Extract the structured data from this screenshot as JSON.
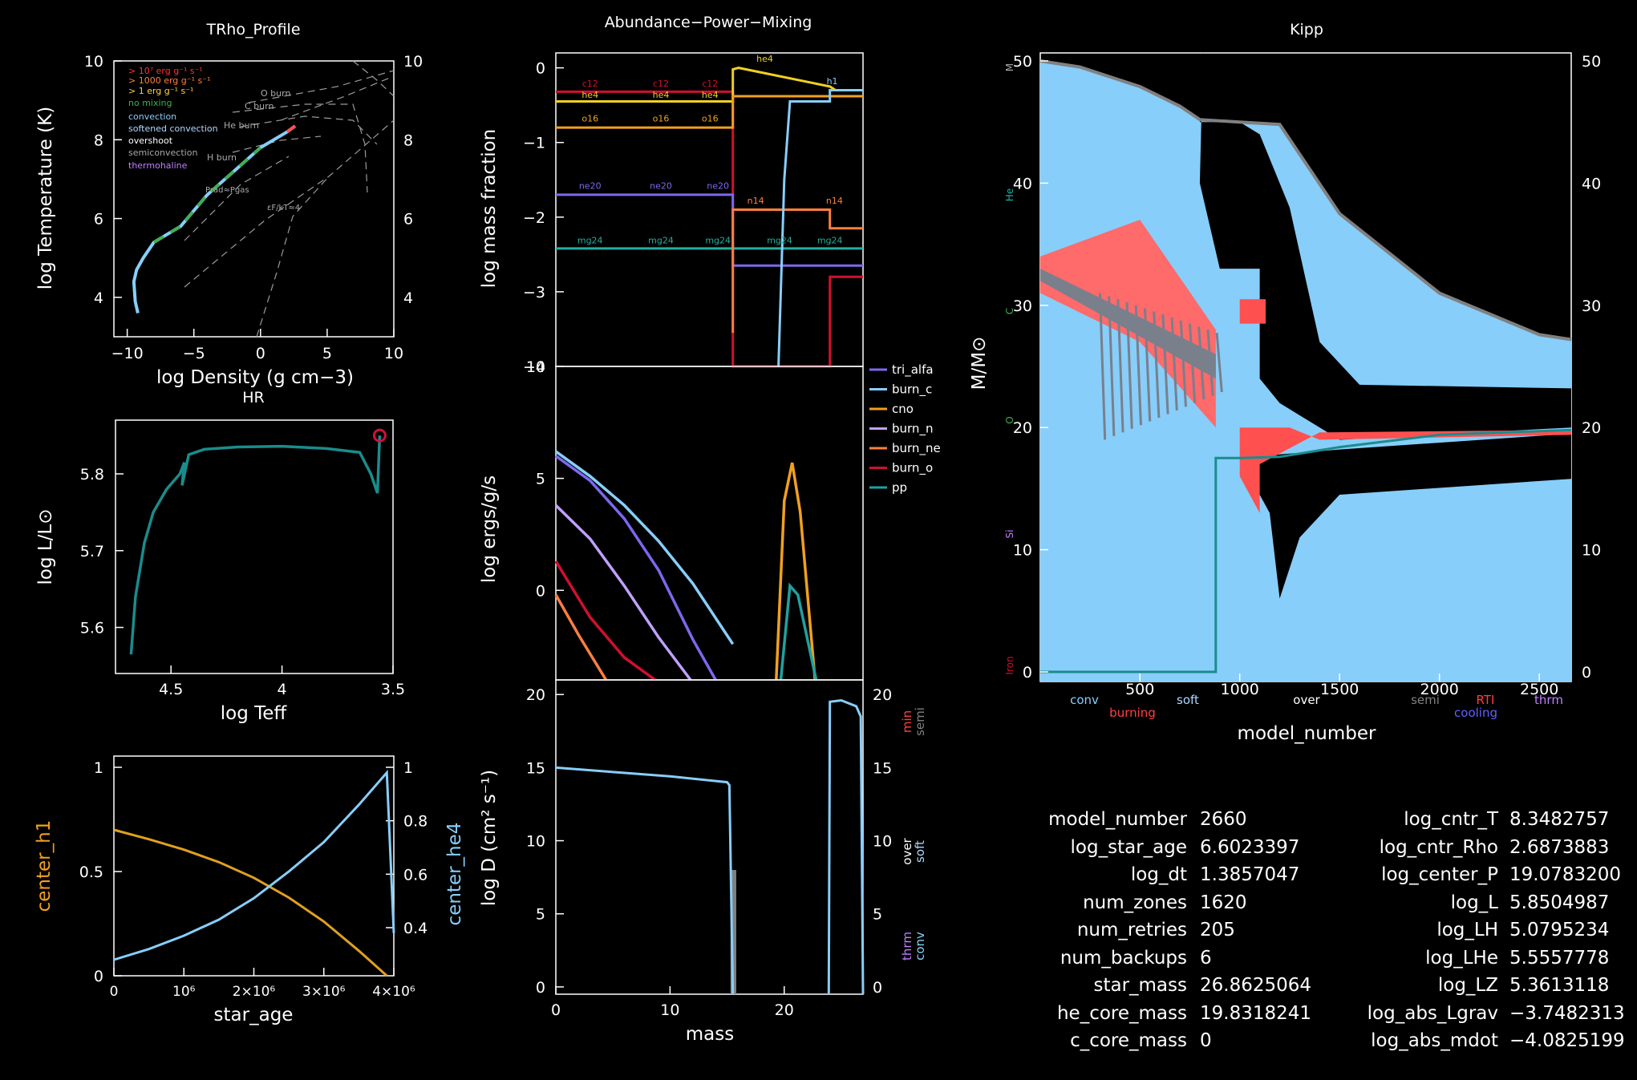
{
  "panel_titles": {
    "trho": "TRho_Profile",
    "abund": "Abundance−Power−Mixing",
    "kipp": "Kipp",
    "hr": "HR"
  },
  "trho": {
    "xlabel": "log Density (g cm−3)",
    "ylabel": "log Temperature (K)",
    "xticks": [
      "−10",
      "−5",
      "0",
      "5",
      "10"
    ],
    "yticks": [
      "4",
      "6",
      "8",
      "10"
    ],
    "legend": [
      {
        "label": "> 10⁷ erg g⁻¹ s⁻¹",
        "color": "#ff3030"
      },
      {
        "label": "> 1000 erg g⁻¹ s⁻¹",
        "color": "#ff7f3f"
      },
      {
        "label": "> 1 erg g⁻¹ s⁻¹",
        "color": "#ffd23f"
      },
      {
        "label": "no mixing",
        "color": "#3cb04a"
      },
      {
        "label": "convection",
        "color": "#87cefa"
      },
      {
        "label": "softened convection",
        "color": "#b0d8ff"
      },
      {
        "label": "overshoot",
        "color": "#ffffff"
      },
      {
        "label": "semiconvection",
        "color": "#a9a9a9"
      },
      {
        "label": "thermohaline",
        "color": "#c080ff"
      }
    ],
    "burn_labels": [
      "O burn",
      "C burn",
      "He burn",
      "H burn"
    ],
    "annotations": [
      "Prad≈Pgas",
      "εF/kT≈4"
    ]
  },
  "hr": {
    "xlabel": "log Teff",
    "ylabel": "log L/L⊙",
    "xticks": [
      "4.5",
      "4",
      "3.5"
    ],
    "yticks": [
      "5.6",
      "5.7",
      "5.8"
    ]
  },
  "center": {
    "xlabel": "star_age",
    "ylabel_left": "center_h1",
    "ylabel_right": "center_he4",
    "xticks": [
      "0",
      "10⁶",
      "2×10⁶",
      "3×10⁶",
      "4×10⁶"
    ],
    "yticks_left": [
      "0",
      "0.5",
      "1"
    ],
    "yticks_right": [
      "0.4",
      "0.6",
      "0.8",
      "1"
    ]
  },
  "abund": {
    "ylabel": "log mass fraction",
    "yticks": [
      "−4",
      "−3",
      "−2",
      "−1",
      "0"
    ],
    "line_labels": [
      {
        "label": "c12",
        "color": "#d01030"
      },
      {
        "label": "he4",
        "color": "#f0d020"
      },
      {
        "label": "o16",
        "color": "#f0a020"
      },
      {
        "label": "ne20",
        "color": "#7b68ee"
      },
      {
        "label": "mg24",
        "color": "#20b0a0"
      },
      {
        "label": "n14",
        "color": "#ff7f3f"
      },
      {
        "label": "h1",
        "color": "#87cefa"
      }
    ]
  },
  "power": {
    "ylabel": "log ergs/g/s",
    "yticks": [
      "0",
      "5",
      "10"
    ],
    "legend": [
      {
        "label": "tri_alfa",
        "color": "#7b68ee"
      },
      {
        "label": "burn_c",
        "color": "#87cefa"
      },
      {
        "label": "cno",
        "color": "#f0a020"
      },
      {
        "label": "burn_n",
        "color": "#c0a0ff"
      },
      {
        "label": "burn_ne",
        "color": "#ff7f3f"
      },
      {
        "label": "burn_o",
        "color": "#d01030"
      },
      {
        "label": "pp",
        "color": "#20a0a0"
      }
    ]
  },
  "mixing": {
    "ylabel": "log D (cm² s⁻¹)",
    "xlabel": "mass",
    "xticks": [
      "0",
      "10",
      "20"
    ],
    "yticks": [
      "0",
      "5",
      "10",
      "15",
      "20"
    ],
    "right_labels": [
      {
        "label": "min",
        "color": "#ff4040"
      },
      {
        "label": "semi",
        "color": "#808080"
      },
      {
        "label": "over",
        "color": "#ffffff"
      },
      {
        "label": "soft",
        "color": "#b0d8ff"
      },
      {
        "label": "thrm",
        "color": "#c080ff"
      },
      {
        "label": "conv",
        "color": "#87cefa"
      }
    ]
  },
  "kipp": {
    "xlabel": "model_number",
    "ylabel": "M/M⊙",
    "xticks": [
      "500",
      "1000",
      "1500",
      "2000",
      "2500"
    ],
    "yticks": [
      "0",
      "10",
      "20",
      "30",
      "40",
      "50"
    ],
    "side_labels": [
      {
        "label": "Iron",
        "color": "#d01030"
      },
      {
        "label": "Si",
        "color": "#c080ff"
      },
      {
        "label": "O",
        "color": "#3cb04a"
      },
      {
        "label": "C",
        "color": "#3cb04a"
      },
      {
        "label": "He",
        "color": "#20b0a0"
      },
      {
        "label": "M",
        "color": "#aaaaaa"
      }
    ],
    "legend": [
      {
        "label": "conv",
        "color": "#87cefa"
      },
      {
        "label": "burning",
        "color": "#ff4040"
      },
      {
        "label": "soft",
        "color": "#b0d8ff"
      },
      {
        "label": "over",
        "color": "#ffffff"
      },
      {
        "label": "semi",
        "color": "#808080"
      },
      {
        "label": "RTI",
        "color": "#ff4040"
      },
      {
        "label": "cooling",
        "color": "#6060ff"
      },
      {
        "label": "thrm",
        "color": "#c080ff"
      }
    ]
  },
  "info_left": [
    {
      "key": "model_number",
      "value": "2660"
    },
    {
      "key": "log_star_age",
      "value": "6.6023397"
    },
    {
      "key": "log_dt",
      "value": "1.3857047"
    },
    {
      "key": "num_zones",
      "value": "1620"
    },
    {
      "key": "num_retries",
      "value": "205"
    },
    {
      "key": "num_backups",
      "value": "6"
    },
    {
      "key": "star_mass",
      "value": "26.8625064"
    },
    {
      "key": "he_core_mass",
      "value": "19.8318241"
    },
    {
      "key": "c_core_mass",
      "value": "0"
    }
  ],
  "info_right": [
    {
      "key": "log_cntr_T",
      "value": "8.3482757"
    },
    {
      "key": "log_cntr_Rho",
      "value": "2.6873883"
    },
    {
      "key": "log_center_P",
      "value": "19.0783200"
    },
    {
      "key": "log_L",
      "value": "5.8504987"
    },
    {
      "key": "log_LH",
      "value": "5.0795234"
    },
    {
      "key": "log_LHe",
      "value": "5.5557778"
    },
    {
      "key": "log_LZ",
      "value": "5.3613118"
    },
    {
      "key": "log_abs_Lgrav",
      "value": "−3.7482313"
    },
    {
      "key": "log_abs_mdot",
      "value": "−4.0825199"
    }
  ],
  "chart_data": [
    {
      "type": "line",
      "title": "TRho_Profile",
      "xlabel": "log Density (g cm−3)",
      "ylabel": "log Temperature (K)",
      "xlim": [
        -11,
        10
      ],
      "ylim": [
        3,
        10
      ],
      "series": [
        {
          "x": [
            -9.2,
            -9.4,
            -9.5,
            -9.3,
            -8.8,
            -8.0,
            -7.0,
            -6.0,
            -5.0,
            -4.0,
            -3.0,
            -2.0,
            -1.0,
            0.0,
            1.0,
            2.0,
            2.6
          ],
          "y": [
            3.6,
            3.9,
            4.4,
            4.7,
            5.0,
            5.4,
            5.6,
            5.8,
            6.2,
            6.6,
            6.9,
            7.2,
            7.5,
            7.8,
            8.0,
            8.2,
            8.35
          ]
        }
      ]
    },
    {
      "type": "line",
      "title": "HR",
      "xlabel": "log Teff",
      "ylabel": "log L/L⊙",
      "xlim": [
        4.75,
        3.5
      ],
      "ylim": [
        5.54,
        5.87
      ],
      "series": [
        {
          "x": [
            4.68,
            4.66,
            4.62,
            4.58,
            4.52,
            4.46,
            4.44,
            4.45,
            4.42,
            4.35,
            4.2,
            4.0,
            3.8,
            3.65,
            3.6,
            3.57,
            3.56
          ],
          "y": [
            5.565,
            5.64,
            5.71,
            5.75,
            5.78,
            5.8,
            5.815,
            5.785,
            5.825,
            5.832,
            5.835,
            5.836,
            5.833,
            5.828,
            5.8,
            5.775,
            5.85
          ]
        }
      ]
    },
    {
      "type": "line",
      "xlabel": "star_age",
      "xlim": [
        0,
        4000000
      ],
      "series": [
        {
          "name": "center_h1",
          "x": [
            0,
            500000,
            1000000,
            1500000,
            2000000,
            2500000,
            3000000,
            3500000,
            3900000
          ],
          "y": [
            0.7,
            0.655,
            0.605,
            0.545,
            0.47,
            0.375,
            0.26,
            0.12,
            0.0
          ]
        },
        {
          "name": "center_he4",
          "x": [
            0,
            500000,
            1000000,
            1500000,
            2000000,
            2500000,
            3000000,
            3500000,
            3900000,
            4000000
          ],
          "y": [
            0.28,
            0.32,
            0.37,
            0.43,
            0.51,
            0.61,
            0.72,
            0.86,
            0.98,
            0.38
          ]
        }
      ]
    },
    {
      "type": "line",
      "title": "Abundance−Power−Mixing",
      "ylabel": "log mass fraction",
      "xlim": [
        0,
        26.9
      ],
      "ylim": [
        -4,
        0.2
      ],
      "series": [
        {
          "name": "c12",
          "x": [
            0,
            15.5,
            15.5,
            24,
            24,
            26.9
          ],
          "y": [
            -0.32,
            -0.32,
            -4.0,
            -4.0,
            -2.8,
            -2.8
          ]
        },
        {
          "name": "he4",
          "x": [
            0,
            15.5,
            15.5,
            16.0,
            24.0,
            24.5,
            26.9
          ],
          "y": [
            -0.45,
            -0.45,
            -0.02,
            0.0,
            -0.25,
            -0.3,
            -0.3
          ]
        },
        {
          "name": "o16",
          "x": [
            0,
            15.5,
            15.5,
            26.9
          ],
          "y": [
            -0.8,
            -0.8,
            -0.38,
            -0.38
          ]
        },
        {
          "name": "ne20",
          "x": [
            0,
            15.5,
            15.5,
            26.9
          ],
          "y": [
            -1.7,
            -1.7,
            -2.65,
            -2.65
          ]
        },
        {
          "name": "mg24",
          "x": [
            0,
            26.9
          ],
          "y": [
            -2.42,
            -2.42
          ]
        },
        {
          "name": "n14",
          "x": [
            15.5,
            15.5,
            24,
            24,
            26.9
          ],
          "y": [
            -3.55,
            -1.9,
            -1.9,
            -2.15,
            -2.15
          ]
        },
        {
          "name": "h1",
          "x": [
            19.5,
            20,
            20.5,
            24,
            24,
            26.9
          ],
          "y": [
            -4.0,
            -1.5,
            -0.45,
            -0.45,
            -0.3,
            -0.3
          ]
        }
      ]
    },
    {
      "type": "line",
      "ylabel": "log ergs/g/s",
      "xlim": [
        0,
        26.9
      ],
      "ylim": [
        -4,
        10
      ],
      "series": [
        {
          "name": "burn_c",
          "x": [
            0,
            3,
            6,
            9,
            12,
            15.5
          ],
          "y": [
            6.2,
            5.1,
            3.8,
            2.2,
            0.3,
            -2.4
          ]
        },
        {
          "name": "tri_alfa",
          "x": [
            0,
            3,
            6,
            9,
            12,
            14
          ],
          "y": [
            6.0,
            4.9,
            3.2,
            0.9,
            -2.2,
            -4.0
          ]
        },
        {
          "name": "burn_n",
          "x": [
            0,
            3,
            6,
            9,
            11.8
          ],
          "y": [
            3.8,
            2.3,
            0.2,
            -2.1,
            -4.0
          ]
        },
        {
          "name": "burn_o",
          "x": [
            0,
            3,
            6,
            8.7
          ],
          "y": [
            1.3,
            -1.2,
            -3.0,
            -4.0
          ]
        },
        {
          "name": "burn_ne",
          "x": [
            0,
            2,
            4.4
          ],
          "y": [
            -0.2,
            -2.0,
            -4.0
          ]
        },
        {
          "name": "cno",
          "x": [
            19.3,
            20.0,
            20.7,
            21.4,
            22.7
          ],
          "y": [
            -4.0,
            4.0,
            5.7,
            3.5,
            -4.0
          ]
        },
        {
          "name": "pp",
          "x": [
            19.7,
            20.5,
            21.2,
            22.8
          ],
          "y": [
            -4.0,
            0.2,
            -0.2,
            -4.0
          ]
        }
      ]
    },
    {
      "type": "line",
      "xlabel": "mass",
      "ylabel": "log D (cm² s⁻¹)",
      "xlim": [
        0,
        26.9
      ],
      "ylim": [
        -0.5,
        21
      ],
      "series": [
        {
          "name": "conv",
          "x": [
            0,
            5,
            10,
            15,
            15.2,
            15.5
          ],
          "y": [
            15.0,
            14.7,
            14.4,
            14.0,
            13.8,
            -0.5
          ]
        },
        {
          "name": "conv_outer",
          "x": [
            23.9,
            24.0,
            25.0,
            26.3,
            26.7,
            26.9
          ],
          "y": [
            -0.5,
            19.5,
            19.6,
            19.2,
            18.5,
            -0.5
          ]
        }
      ]
    },
    {
      "type": "area",
      "title": "Kipp",
      "xlabel": "model_number",
      "ylabel": "M/M⊙",
      "xlim": [
        1,
        2660
      ],
      "ylim": [
        0,
        50
      ],
      "series": [
        {
          "name": "star_mass",
          "x": [
            1,
            200,
            500,
            700,
            800,
            1000,
            1200,
            1500,
            2000,
            2500,
            2660
          ],
          "y": [
            50.0,
            49.5,
            47.9,
            46.3,
            45.2,
            45.0,
            44.8,
            37.5,
            31.0,
            27.6,
            27.2
          ]
        },
        {
          "name": "he_core_mass",
          "x": [
            1,
            880,
            880,
            1000,
            1200,
            1500,
            2000,
            2660
          ],
          "y": [
            0.0,
            0.0,
            17.5,
            17.5,
            17.6,
            18.4,
            19.4,
            19.8
          ]
        }
      ]
    }
  ]
}
